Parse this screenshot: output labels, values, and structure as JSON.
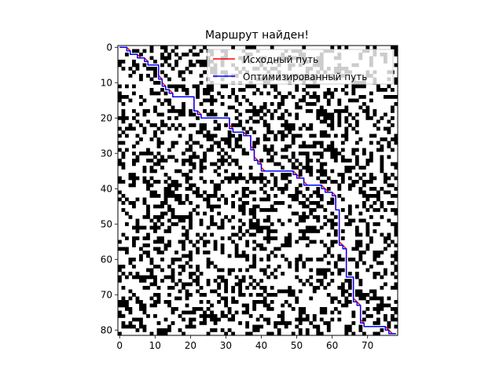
{
  "chart_data": {
    "type": "heatmap",
    "title": "Маршрут найден!",
    "xlabel": "",
    "ylabel": "",
    "x_range": [
      -0.5,
      78.5
    ],
    "y_range": [
      -0.5,
      81.5
    ],
    "grid_cols": 79,
    "grid_rows": 82,
    "obstacle_density": 0.33,
    "x_ticks": [
      0,
      10,
      20,
      30,
      40,
      50,
      60,
      70
    ],
    "y_ticks": [
      0,
      10,
      20,
      30,
      40,
      50,
      60,
      70,
      80
    ],
    "grid": false,
    "legend_position": "upper right",
    "colors": {
      "obstacle": "#000000",
      "free": "#ffffff",
      "original": "#ff0000",
      "optimized": "#0000ff"
    },
    "series": [
      {
        "name": "Исходный путь",
        "color": "#ff0000",
        "points": [
          [
            0,
            0
          ],
          [
            2,
            0
          ],
          [
            3,
            1
          ],
          [
            3,
            2
          ],
          [
            5,
            2
          ],
          [
            6,
            3
          ],
          [
            7,
            3
          ],
          [
            8,
            4
          ],
          [
            8,
            5
          ],
          [
            11,
            5
          ],
          [
            11,
            8
          ],
          [
            12,
            9
          ],
          [
            12,
            10
          ],
          [
            13,
            11
          ],
          [
            13,
            12
          ],
          [
            14,
            12
          ],
          [
            15,
            13
          ],
          [
            15,
            14
          ],
          [
            21,
            14
          ],
          [
            21,
            18
          ],
          [
            22,
            18
          ],
          [
            23,
            19
          ],
          [
            23,
            20
          ],
          [
            31,
            20
          ],
          [
            31,
            22
          ],
          [
            32,
            23
          ],
          [
            32,
            24
          ],
          [
            35,
            24
          ],
          [
            36,
            25
          ],
          [
            37,
            25
          ],
          [
            37,
            28
          ],
          [
            38,
            29
          ],
          [
            38,
            31
          ],
          [
            39,
            32
          ],
          [
            40,
            33
          ],
          [
            40,
            34
          ],
          [
            41,
            35
          ],
          [
            49,
            35
          ],
          [
            50,
            36
          ],
          [
            51,
            37
          ],
          [
            52,
            37
          ],
          [
            52,
            38
          ],
          [
            53,
            39
          ],
          [
            57,
            39
          ],
          [
            58,
            40
          ],
          [
            59,
            41
          ],
          [
            60,
            41
          ],
          [
            61,
            42
          ],
          [
            61,
            46
          ],
          [
            62,
            46
          ],
          [
            62,
            55
          ],
          [
            63,
            56
          ],
          [
            64,
            57
          ],
          [
            64,
            65
          ],
          [
            66,
            65
          ],
          [
            66,
            71
          ],
          [
            67,
            72
          ],
          [
            68,
            73
          ],
          [
            68,
            77
          ],
          [
            69,
            78
          ],
          [
            69,
            79
          ],
          [
            75,
            79
          ],
          [
            76,
            80
          ],
          [
            77,
            81
          ],
          [
            78,
            81
          ]
        ]
      },
      {
        "name": "Оптимизированный путь",
        "color": "#0000ff",
        "points": [
          [
            0,
            0
          ],
          [
            2,
            0
          ],
          [
            2,
            1
          ],
          [
            3,
            1
          ],
          [
            3,
            2
          ],
          [
            5,
            2
          ],
          [
            5,
            3
          ],
          [
            7,
            3
          ],
          [
            7,
            4
          ],
          [
            8,
            4
          ],
          [
            8,
            5
          ],
          [
            11,
            5
          ],
          [
            11,
            9
          ],
          [
            12,
            9
          ],
          [
            12,
            11
          ],
          [
            13,
            11
          ],
          [
            13,
            12
          ],
          [
            14,
            12
          ],
          [
            14,
            13
          ],
          [
            15,
            13
          ],
          [
            15,
            14
          ],
          [
            21,
            14
          ],
          [
            21,
            18
          ],
          [
            22,
            18
          ],
          [
            22,
            19
          ],
          [
            23,
            19
          ],
          [
            23,
            20
          ],
          [
            31,
            20
          ],
          [
            31,
            23
          ],
          [
            32,
            23
          ],
          [
            32,
            24
          ],
          [
            35,
            24
          ],
          [
            35,
            25
          ],
          [
            37,
            25
          ],
          [
            37,
            29
          ],
          [
            38,
            29
          ],
          [
            38,
            32
          ],
          [
            39,
            32
          ],
          [
            39,
            33
          ],
          [
            40,
            33
          ],
          [
            40,
            35
          ],
          [
            49,
            35
          ],
          [
            49,
            36
          ],
          [
            50,
            36
          ],
          [
            50,
            37
          ],
          [
            52,
            37
          ],
          [
            52,
            39
          ],
          [
            57,
            39
          ],
          [
            57,
            40
          ],
          [
            58,
            40
          ],
          [
            58,
            41
          ],
          [
            60,
            41
          ],
          [
            60,
            42
          ],
          [
            61,
            42
          ],
          [
            61,
            46
          ],
          [
            62,
            46
          ],
          [
            62,
            56
          ],
          [
            63,
            56
          ],
          [
            63,
            57
          ],
          [
            64,
            57
          ],
          [
            64,
            65
          ],
          [
            66,
            65
          ],
          [
            66,
            72
          ],
          [
            67,
            72
          ],
          [
            67,
            73
          ],
          [
            68,
            73
          ],
          [
            68,
            78
          ],
          [
            69,
            78
          ],
          [
            69,
            79
          ],
          [
            75,
            79
          ],
          [
            75,
            80
          ],
          [
            76,
            80
          ],
          [
            76,
            81
          ],
          [
            78,
            81
          ]
        ]
      }
    ]
  }
}
